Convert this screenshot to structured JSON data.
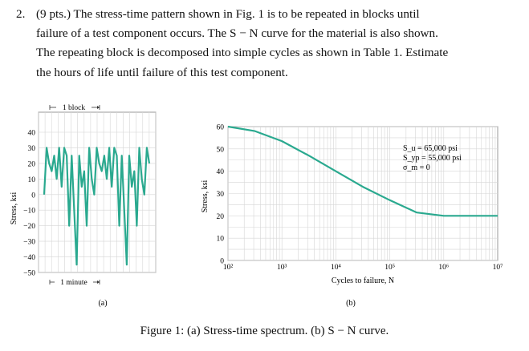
{
  "problem": {
    "number": "2.",
    "lines": [
      "(9 pts.)  The stress-time pattern shown in Fig. 1 is to be repeated in blocks until",
      "failure of a test component occurs.  The S − N curve for the material is also shown.",
      "The repeating block is decomposed into simple cycles as shown in Table  1. Estimate",
      "the hours of life until failure of this test component."
    ]
  },
  "figure": {
    "caption": "Figure 1: (a) Stress-time spectrum. (b) S − N curve.",
    "panel_a": {
      "label": "(a)",
      "block_label": "1 block",
      "minute_label": "1 minute",
      "ylabel": "Stress, ksi"
    },
    "panel_b": {
      "label": "(b)",
      "ylabel": "Stress, ksi",
      "xlabel": "Cycles to failure, N",
      "annotation_lines": [
        "S_u = 65,000 psi",
        "S_yp = 55,000 psi",
        "σ_m = 0"
      ]
    }
  },
  "chart_data": [
    {
      "type": "line",
      "ylabel": "Stress, ksi",
      "ylim": [
        -50,
        40
      ],
      "yticks": [
        40,
        30,
        20,
        10,
        0,
        -10,
        -20,
        -30,
        -40,
        -50
      ],
      "grid": true,
      "series_color": "#2aa98f",
      "values": [
        0,
        30,
        20,
        15,
        25,
        10,
        30,
        5,
        30,
        25,
        -20,
        25,
        -10,
        -45,
        25,
        5,
        15,
        -20,
        30,
        10,
        0,
        30,
        20,
        15,
        25,
        10,
        30,
        5,
        30,
        25,
        -20,
        25,
        -10,
        -45,
        25,
        5,
        15,
        -20,
        30,
        10,
        0,
        30,
        20
      ]
    },
    {
      "type": "line",
      "ylabel": "Stress, ksi",
      "xlabel": "Cycles to failure, N",
      "x_scale": "log",
      "xticks": [
        "10²",
        "10³",
        "10⁴",
        "10⁵",
        "10⁶",
        "10⁷"
      ],
      "yticks": [
        60,
        50,
        40,
        30,
        20,
        10,
        0
      ],
      "ylim": [
        0,
        60
      ],
      "grid": true,
      "series_color": "#2aa98f",
      "x": [
        100,
        316,
        1000,
        3162,
        10000,
        31623,
        100000,
        316228,
        1000000,
        10000000
      ],
      "y": [
        60,
        58,
        53.5,
        47,
        40,
        33,
        27,
        21.5,
        20,
        20
      ]
    }
  ]
}
